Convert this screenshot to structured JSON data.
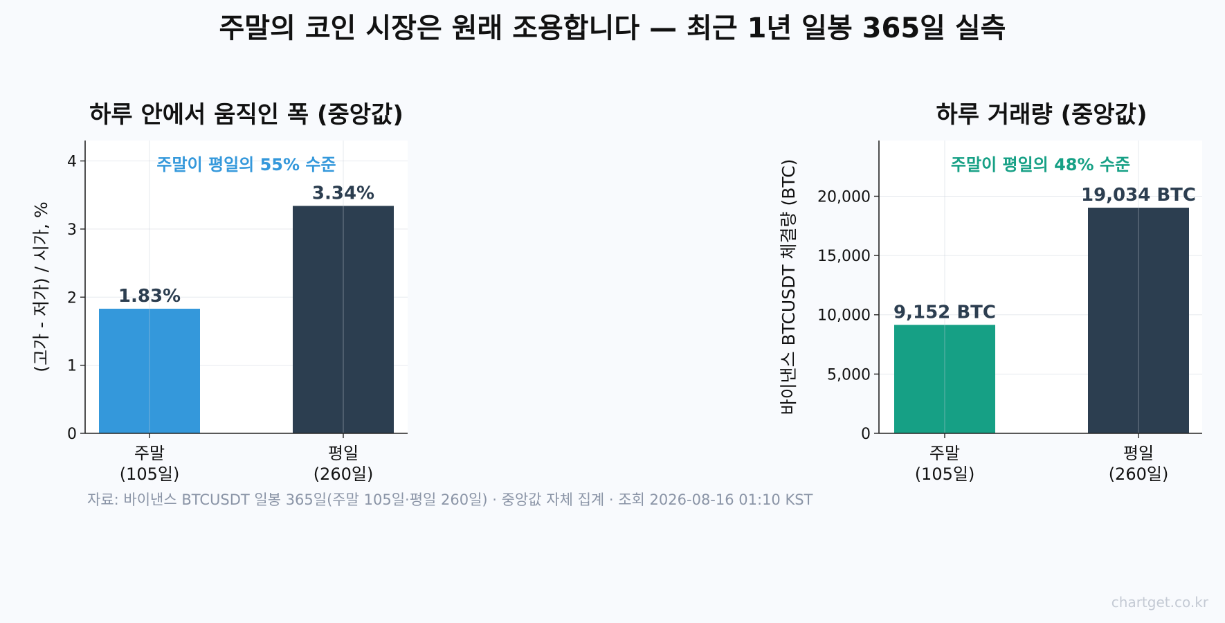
{
  "title": "주말의 코인 시장은 원래 조용합니다 — 최근 1년 일봉 365일 실측",
  "source": "자료: 바이낸스 BTCUSDT 일봉 365일(주말 105일·평일 260일) · 중앙값 자체 집계 · 조회 2026-08-16 01:10 KST",
  "watermark": "chartget.co.kr",
  "chart_data": [
    {
      "type": "bar",
      "title": "하루 안에서 움직인 폭 (중앙값)",
      "ylabel": "(고가 - 저가) / 시가, %",
      "annotation": "주말이 평일의 55% 수준",
      "annotation_color": "#3498db",
      "categories": [
        "주말\n(105일)",
        "평일\n(260일)"
      ],
      "values": [
        1.83,
        3.34
      ],
      "value_labels": [
        "1.83%",
        "3.34%"
      ],
      "colors": [
        "#3498db",
        "#2c3e50"
      ],
      "ylim": [
        0,
        4.3
      ],
      "yticks": [
        0,
        1,
        2,
        3,
        4
      ],
      "ytick_labels": [
        "0",
        "1",
        "2",
        "3",
        "4"
      ],
      "grid": true
    },
    {
      "type": "bar",
      "title": "하루 거래량 (중앙값)",
      "ylabel": "바이낸스 BTCUSDT 체결량 (BTC)",
      "annotation": "주말이 평일의 48% 수준",
      "annotation_color": "#16a085",
      "categories": [
        "주말\n(105일)",
        "평일\n(260일)"
      ],
      "values": [
        9152,
        19034
      ],
      "value_labels": [
        "9,152 BTC",
        "19,034 BTC"
      ],
      "colors": [
        "#16a085",
        "#2c3e50"
      ],
      "ylim": [
        0,
        24700
      ],
      "yticks": [
        0,
        5000,
        10000,
        15000,
        20000
      ],
      "ytick_labels": [
        "0",
        "5,000",
        "10,000",
        "15,000",
        "20,000"
      ],
      "grid": true
    }
  ]
}
